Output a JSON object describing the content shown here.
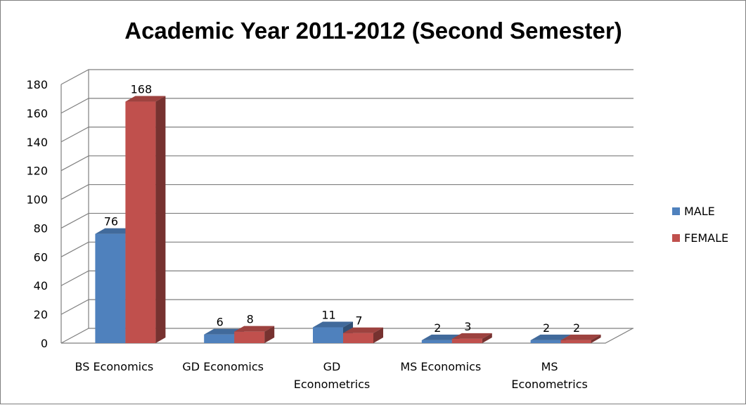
{
  "chart_data": {
    "type": "bar",
    "title": "Academic Year 2011-2012 (Second Semester)",
    "categories": [
      [
        "BS Economics"
      ],
      [
        "GD Economics"
      ],
      [
        "GD",
        "Econometrics"
      ],
      [
        "MS Economics"
      ],
      [
        "MS",
        "Econometrics"
      ]
    ],
    "series": [
      {
        "name": "MALE",
        "values": [
          76,
          6,
          11,
          2,
          2
        ],
        "color": "#4F81BD"
      },
      {
        "name": "FEMALE",
        "values": [
          168,
          8,
          7,
          3,
          2
        ],
        "color": "#C0504D"
      }
    ],
    "yticks": [
      "0",
      "20",
      "40",
      "60",
      "80",
      "100",
      "120",
      "140",
      "160",
      "180"
    ],
    "ylim": [
      0,
      180
    ],
    "grid": true,
    "legend": "right",
    "style": "3d-clustered-column"
  }
}
